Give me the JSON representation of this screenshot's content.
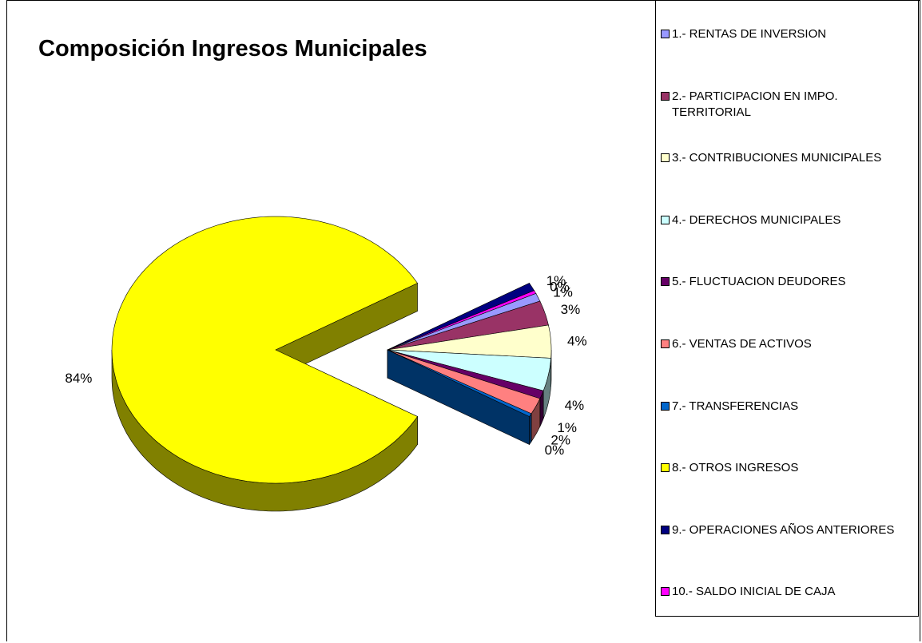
{
  "chart_data": {
    "type": "pie3d",
    "title": "Composición Ingresos Municipales",
    "categories": [
      "1.- RENTAS DE INVERSION",
      "2.- PARTICIPACION EN IMPO. TERRITORIAL",
      "3.- CONTRIBUCIONES MUNICIPALES",
      "4.- DERECHOS MUNICIPALES",
      "5.- FLUCTUACION DEUDORES",
      "6.- VENTAS DE ACTIVOS",
      "7.-   TRANSFERENCIAS",
      "8.- OTROS INGRESOS",
      "9.- OPERACIONES AÑOS ANTERIORES",
      "10.-  SALDO INICIAL DE CAJA"
    ],
    "values": [
      1,
      3,
      4,
      4,
      1,
      2,
      0.4,
      84,
      1,
      0.4
    ],
    "value_labels": [
      "1%",
      "3%",
      "4%",
      "4%",
      "1%",
      "2%",
      "0%",
      "84%",
      "1%",
      "0%"
    ],
    "colors": [
      "#9999ff",
      "#993366",
      "#ffffcc",
      "#ccffff",
      "#660066",
      "#ff8080",
      "#0066cc",
      "#ffff00",
      "#000080",
      "#ff00ff"
    ],
    "legend": "right"
  }
}
